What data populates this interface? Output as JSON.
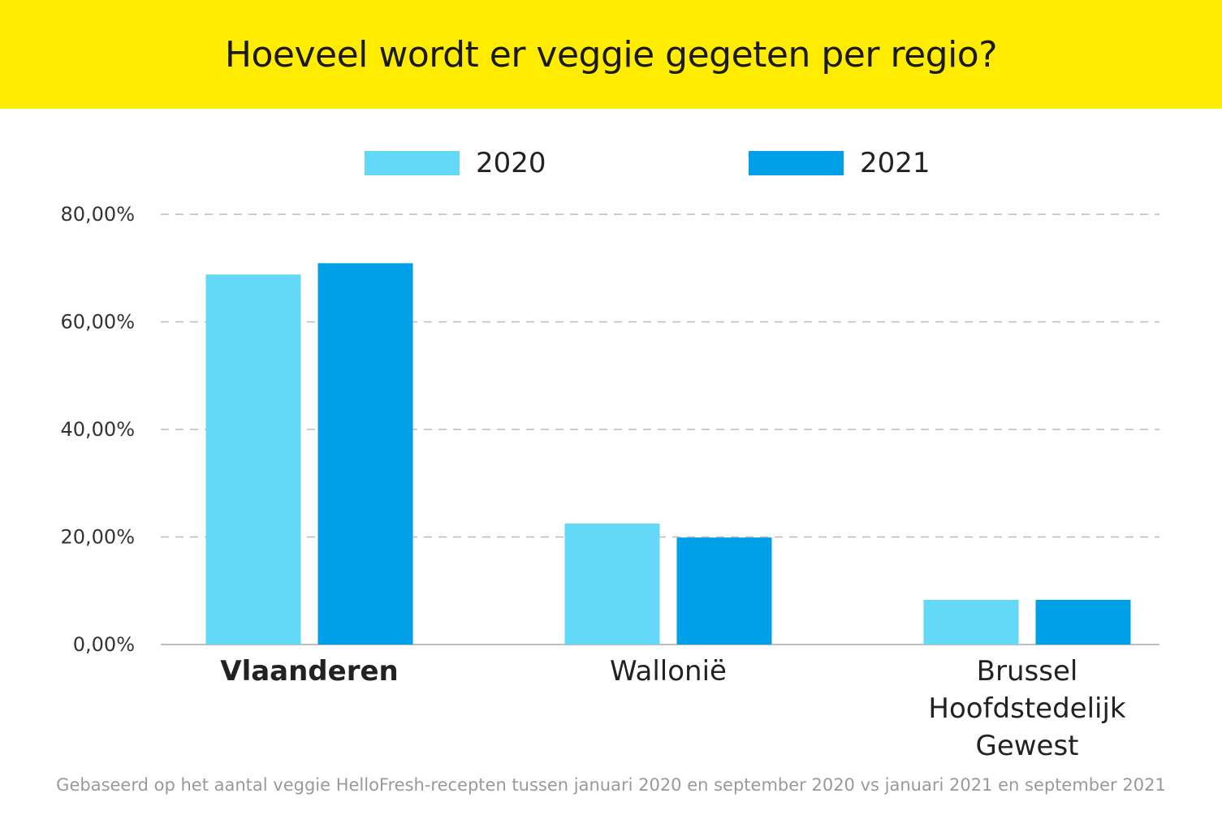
{
  "colors": {
    "banner": "#ffec00",
    "series_2020": "#63d9f7",
    "series_2021": "#00a0e9",
    "grid": "#bbbbbb"
  },
  "chart_data": {
    "type": "bar",
    "title": "Hoeveel wordt er veggie gegeten per regio?",
    "categories": [
      "Vlaanderen",
      "Wallonië",
      "Brussel Hoofdstedelijk Gewest"
    ],
    "category_lines": [
      [
        "Vlaanderen"
      ],
      [
        "Wallonië"
      ],
      [
        "Brussel",
        "Hoofdstedelijk",
        "Gewest"
      ]
    ],
    "series": [
      {
        "name": "2020",
        "values": [
          68.8,
          22.5,
          8.3
        ]
      },
      {
        "name": "2021",
        "values": [
          70.9,
          19.9,
          8.3
        ]
      }
    ],
    "ylim": [
      0,
      80
    ],
    "yticks": [
      0,
      20,
      40,
      60,
      80
    ],
    "ytick_labels": [
      "0,00%",
      "20,00%",
      "40,00%",
      "60,00%",
      "80,00%"
    ],
    "grid": true,
    "legend_position": "top",
    "xlabel": "",
    "ylabel": ""
  },
  "footnote": "Gebaseerd op het aantal veggie HelloFresh-recepten tussen januari 2020 en september 2020 vs januari 2021 en september 2021"
}
